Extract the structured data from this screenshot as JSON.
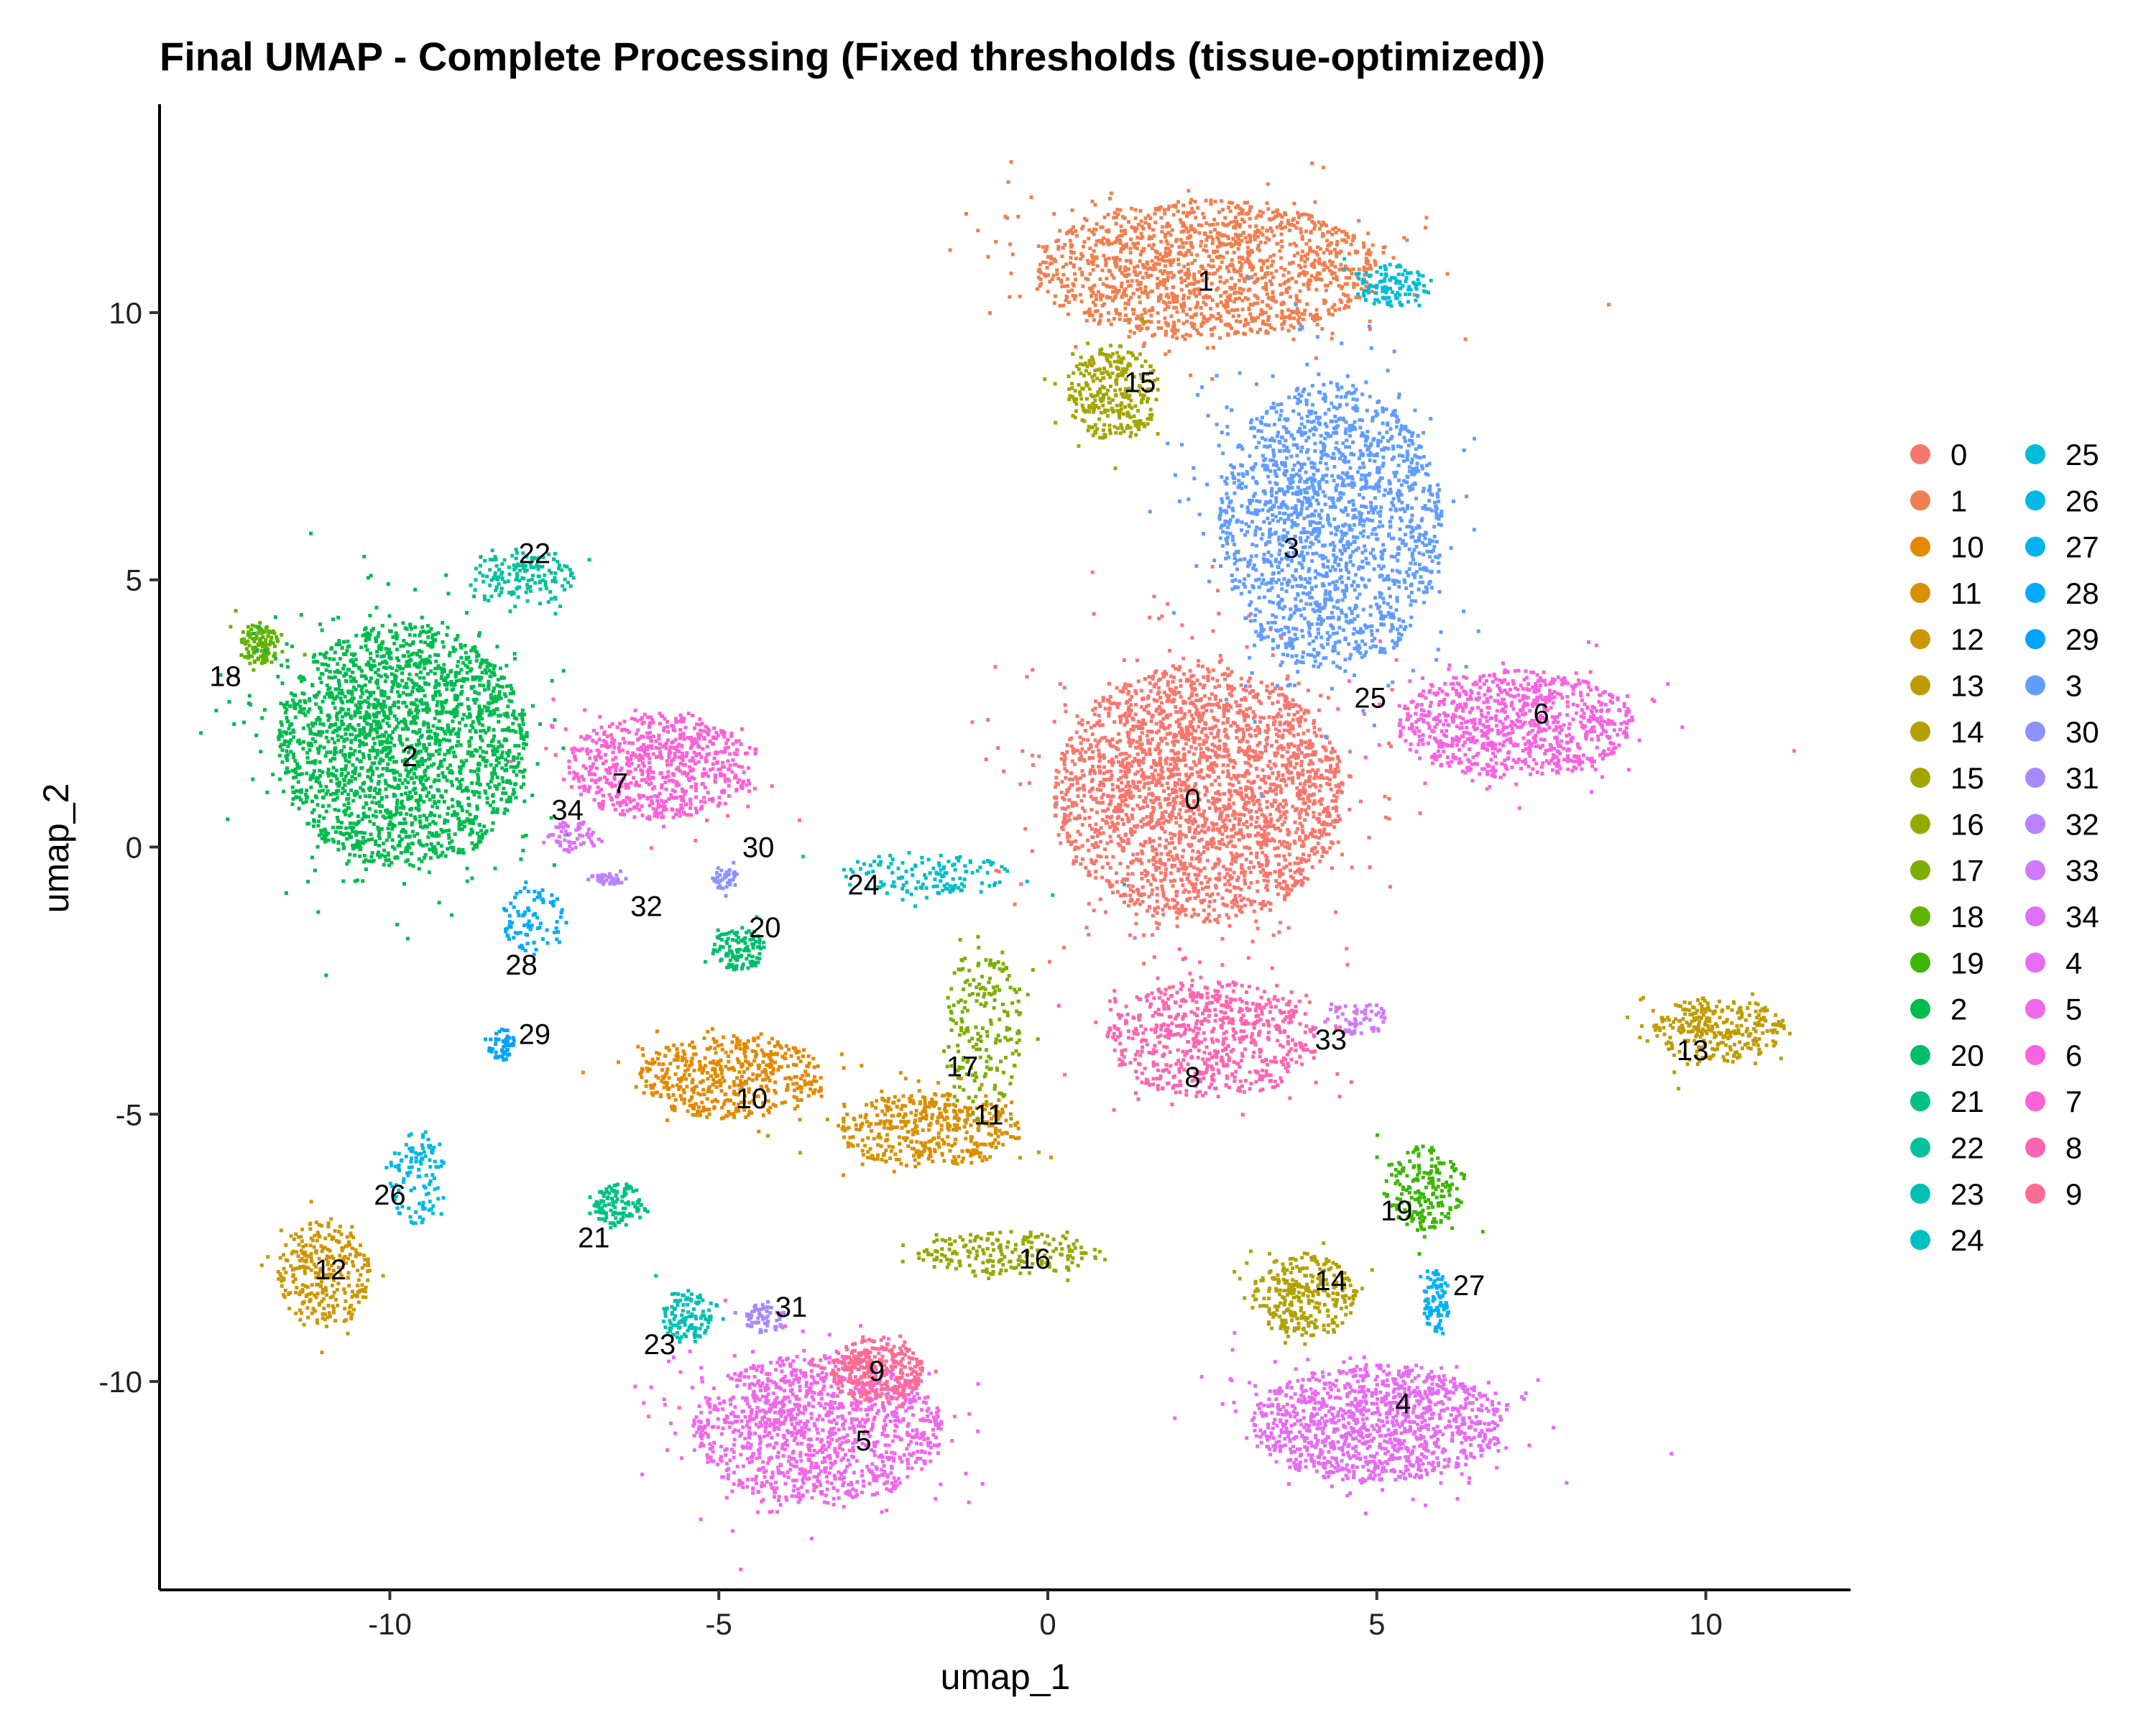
{
  "chart_data": {
    "type": "scatter",
    "title": "Final UMAP - Complete Processing (Fixed thresholds (tissue-optimized))",
    "xlabel": "umap_1",
    "ylabel": "umap_2",
    "xlim": [
      -13.5,
      12.2
    ],
    "ylim": [
      -13.9,
      13.9
    ],
    "x_ticks": [
      -10,
      -5,
      0,
      5,
      10
    ],
    "y_ticks": [
      -10,
      -5,
      0,
      5,
      10
    ],
    "x_tick_labels": [
      "-10",
      "-5",
      "0",
      "5",
      "10"
    ],
    "y_tick_labels": [
      "-10",
      "-5",
      "0",
      "5",
      "10"
    ],
    "grid": false,
    "legend_position": "right",
    "legend_columns": 2,
    "legend_order": [
      "0",
      "1",
      "10",
      "11",
      "12",
      "13",
      "14",
      "15",
      "16",
      "17",
      "18",
      "19",
      "2",
      "20",
      "21",
      "22",
      "23",
      "24",
      "25",
      "26",
      "27",
      "28",
      "29",
      "3",
      "30",
      "31",
      "32",
      "33",
      "34",
      "4",
      "5",
      "6",
      "7",
      "8",
      "9"
    ],
    "series": [
      {
        "name": "0",
        "color": "#F8766D",
        "cx": 2.3,
        "cy": 1.0,
        "rx": 2.2,
        "ry": 2.4,
        "count": 2600,
        "label_x": 2.2,
        "label_y": 0.9
      },
      {
        "name": "1",
        "color": "#F07F4F",
        "cx": 2.4,
        "cy": 10.8,
        "rx": 2.6,
        "ry": 1.3,
        "count": 1500,
        "label_x": 2.4,
        "label_y": 10.6
      },
      {
        "name": "10",
        "color": "#E38900",
        "cx": -4.8,
        "cy": -4.3,
        "rx": 1.4,
        "ry": 0.8,
        "count": 500,
        "label_x": -4.5,
        "label_y": -4.7
      },
      {
        "name": "11",
        "color": "#D89000",
        "cx": -1.8,
        "cy": -5.3,
        "rx": 1.4,
        "ry": 0.7,
        "count": 450,
        "label_x": -0.9,
        "label_y": -5.0
      },
      {
        "name": "12",
        "color": "#CD9600",
        "cx": -11.0,
        "cy": -8.0,
        "rx": 0.7,
        "ry": 1.0,
        "count": 300,
        "label_x": -10.9,
        "label_y": -7.9
      },
      {
        "name": "13",
        "color": "#C09B00",
        "cx": 10.2,
        "cy": -3.4,
        "rx": 1.0,
        "ry": 0.6,
        "count": 300,
        "label_x": 9.8,
        "label_y": -3.8
      },
      {
        "name": "14",
        "color": "#B2A100",
        "cx": 3.9,
        "cy": -8.4,
        "rx": 0.8,
        "ry": 0.8,
        "count": 300,
        "label_x": 4.3,
        "label_y": -8.1
      },
      {
        "name": "15",
        "color": "#A3A500",
        "cx": 1.0,
        "cy": 8.5,
        "rx": 0.7,
        "ry": 0.9,
        "count": 300,
        "label_x": 1.4,
        "label_y": 8.7
      },
      {
        "name": "16",
        "color": "#92AA00",
        "cx": -0.6,
        "cy": -7.6,
        "rx": 1.4,
        "ry": 0.4,
        "count": 200,
        "label_x": -0.2,
        "label_y": -7.7
      },
      {
        "name": "17",
        "color": "#7CAE00",
        "cx": -1.0,
        "cy": -3.5,
        "rx": 0.6,
        "ry": 1.6,
        "count": 200,
        "label_x": -1.3,
        "label_y": -4.1
      },
      {
        "name": "18",
        "color": "#62B200",
        "cx": -12.0,
        "cy": 3.8,
        "rx": 0.3,
        "ry": 0.4,
        "count": 120,
        "label_x": -12.5,
        "label_y": 3.2
      },
      {
        "name": "19",
        "color": "#3AB700",
        "cx": 5.7,
        "cy": -6.4,
        "rx": 0.6,
        "ry": 0.8,
        "count": 200,
        "label_x": 5.3,
        "label_y": -6.8
      },
      {
        "name": "2",
        "color": "#00BB4E",
        "cx": -9.8,
        "cy": 1.9,
        "rx": 1.9,
        "ry": 2.3,
        "count": 2200,
        "label_x": -9.7,
        "label_y": 1.7
      },
      {
        "name": "20",
        "color": "#00BE6C",
        "cx": -4.7,
        "cy": -1.9,
        "rx": 0.4,
        "ry": 0.4,
        "count": 120,
        "label_x": -4.3,
        "label_y": -1.5
      },
      {
        "name": "21",
        "color": "#00C085",
        "cx": -6.5,
        "cy": -6.7,
        "rx": 0.4,
        "ry": 0.4,
        "count": 120,
        "label_x": -6.9,
        "label_y": -7.3
      },
      {
        "name": "22",
        "color": "#00C19C",
        "cx": -8.0,
        "cy": 5.0,
        "rx": 0.8,
        "ry": 0.5,
        "count": 150,
        "label_x": -7.8,
        "label_y": 5.5
      },
      {
        "name": "23",
        "color": "#00C0B2",
        "cx": -5.5,
        "cy": -8.8,
        "rx": 0.4,
        "ry": 0.5,
        "count": 120,
        "label_x": -5.9,
        "label_y": -9.3
      },
      {
        "name": "24",
        "color": "#00BFC4",
        "cx": -1.9,
        "cy": -0.5,
        "rx": 1.3,
        "ry": 0.4,
        "count": 140,
        "label_x": -2.8,
        "label_y": -0.7
      },
      {
        "name": "25",
        "color": "#00BCD6",
        "cx": 5.2,
        "cy": 10.5,
        "rx": 0.6,
        "ry": 0.4,
        "count": 120,
        "label_x": 4.9,
        "label_y": 2.8
      },
      {
        "name": "26",
        "color": "#00B8E5",
        "cx": -9.6,
        "cy": -6.2,
        "rx": 0.4,
        "ry": 0.9,
        "count": 110,
        "label_x": -10.0,
        "label_y": -6.5
      },
      {
        "name": "27",
        "color": "#00B2F3",
        "cx": 5.9,
        "cy": -8.5,
        "rx": 0.2,
        "ry": 0.6,
        "count": 90,
        "label_x": 6.4,
        "label_y": -8.2
      },
      {
        "name": "28",
        "color": "#00ABFD",
        "cx": -7.8,
        "cy": -1.4,
        "rx": 0.5,
        "ry": 0.7,
        "count": 90,
        "label_x": -8.0,
        "label_y": -2.2
      },
      {
        "name": "29",
        "color": "#00A3FF",
        "cx": -8.3,
        "cy": -3.7,
        "rx": 0.2,
        "ry": 0.3,
        "count": 50,
        "label_x": -7.8,
        "label_y": -3.5
      },
      {
        "name": "3",
        "color": "#619CFF",
        "cx": 4.3,
        "cy": 6.0,
        "rx": 1.7,
        "ry": 2.7,
        "count": 1800,
        "label_x": 3.7,
        "label_y": 5.6
      },
      {
        "name": "30",
        "color": "#8B93FF",
        "cx": -4.9,
        "cy": -0.6,
        "rx": 0.2,
        "ry": 0.2,
        "count": 40,
        "label_x": -4.4,
        "label_y": 0.0
      },
      {
        "name": "31",
        "color": "#A58AFF",
        "cx": -4.3,
        "cy": -8.8,
        "rx": 0.3,
        "ry": 0.3,
        "count": 60,
        "label_x": -3.9,
        "label_y": -8.6
      },
      {
        "name": "32",
        "color": "#BA82FF",
        "cx": -6.7,
        "cy": -0.6,
        "rx": 0.3,
        "ry": 0.1,
        "count": 40,
        "label_x": -6.1,
        "label_y": -1.1
      },
      {
        "name": "33",
        "color": "#CE79FF",
        "cx": 4.7,
        "cy": -3.2,
        "rx": 0.5,
        "ry": 0.3,
        "count": 60,
        "label_x": 4.3,
        "label_y": -3.6
      },
      {
        "name": "34",
        "color": "#DD71FA",
        "cx": -7.2,
        "cy": 0.2,
        "rx": 0.4,
        "ry": 0.3,
        "count": 60,
        "label_x": -7.3,
        "label_y": 0.7
      },
      {
        "name": "4",
        "color": "#E76BF3",
        "cx": 5.0,
        "cy": -10.8,
        "rx": 1.9,
        "ry": 1.1,
        "count": 1200,
        "label_x": 5.4,
        "label_y": -10.4
      },
      {
        "name": "5",
        "color": "#F067EA",
        "cx": -3.5,
        "cy": -10.9,
        "rx": 1.9,
        "ry": 1.4,
        "count": 1300,
        "label_x": -2.8,
        "label_y": -11.1
      },
      {
        "name": "6",
        "color": "#F763E0",
        "cx": 7.1,
        "cy": 2.3,
        "rx": 1.8,
        "ry": 1.0,
        "count": 900,
        "label_x": 7.5,
        "label_y": 2.5
      },
      {
        "name": "7",
        "color": "#FC61D5",
        "cx": -5.9,
        "cy": 1.5,
        "rx": 1.4,
        "ry": 1.0,
        "count": 700,
        "label_x": -6.5,
        "label_y": 1.2
      },
      {
        "name": "8",
        "color": "#FF64B0",
        "cx": 2.5,
        "cy": -3.6,
        "rx": 1.6,
        "ry": 1.1,
        "count": 700,
        "label_x": 2.2,
        "label_y": -4.3
      },
      {
        "name": "9",
        "color": "#FF6C91",
        "cx": -2.6,
        "cy": -9.8,
        "rx": 0.7,
        "ry": 0.6,
        "count": 300,
        "label_x": -2.6,
        "label_y": -9.8
      }
    ]
  }
}
